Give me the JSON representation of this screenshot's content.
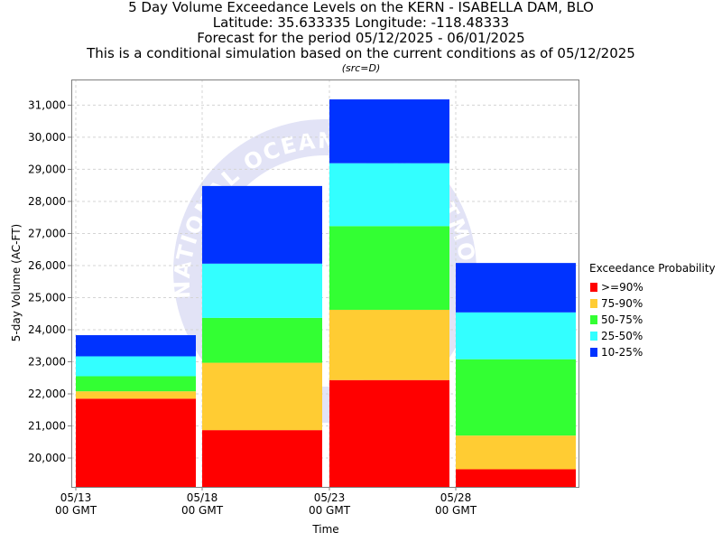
{
  "titles": {
    "line1": "5 Day Volume Exceedance Levels on the KERN - ISABELLA DAM, BLO",
    "line2": "Latitude: 35.633335 Longitude: -118.48333",
    "line3": "Forecast for the period 05/12/2025 - 06/01/2025",
    "line4": "This is a conditional simulation based on the current conditions as of 05/12/2025",
    "src": "(src=D)"
  },
  "watermark": "NATIONAL OCEANIC AND ATMOSPHERIC ADMINISTRATION",
  "colors": {
    "p90": "#ff0000",
    "p75": "#ffcc33",
    "p50": "#33ff33",
    "p25": "#33ffff",
    "p10": "#0033ff",
    "plot_border": "#808080",
    "grid": "#d4d4d4"
  },
  "chart_data": {
    "type": "bar",
    "stacked": true,
    "xlabel": "Time",
    "ylabel": "5-day Volume (AC-FT)",
    "ylim": [
      19100,
      31800
    ],
    "yticks": [
      20000,
      21000,
      22000,
      23000,
      24000,
      25000,
      26000,
      27000,
      28000,
      29000,
      30000,
      31000
    ],
    "ytick_labels": [
      "20,000",
      "21,000",
      "22,000",
      "23,000",
      "24,000",
      "25,000",
      "26,000",
      "27,000",
      "28,000",
      "29,000",
      "30,000",
      "31,000"
    ],
    "xticks": [
      {
        "line1": "05/13",
        "line2": "00 GMT"
      },
      {
        "line1": "05/18",
        "line2": "00 GMT"
      },
      {
        "line1": "05/23",
        "line2": "00 GMT"
      },
      {
        "line1": "05/28",
        "line2": "00 GMT"
      }
    ],
    "grid": true,
    "legend": {
      "title": "Exceedance Probability",
      "placement": "right",
      "entries": [
        ">=90%",
        "75-90%",
        "50-75%",
        "25-50%",
        "10-25%"
      ]
    },
    "bars": [
      {
        "period": "05/13",
        "levels": [
          21850,
          22080,
          22550,
          23170,
          23830
        ]
      },
      {
        "period": "05/18",
        "levels": [
          20870,
          22970,
          24370,
          26060,
          28480
        ]
      },
      {
        "period": "05/23",
        "levels": [
          22430,
          24620,
          27230,
          29190,
          31180
        ]
      },
      {
        "period": "05/28",
        "levels": [
          19650,
          20700,
          23080,
          24540,
          26080
        ]
      }
    ]
  }
}
